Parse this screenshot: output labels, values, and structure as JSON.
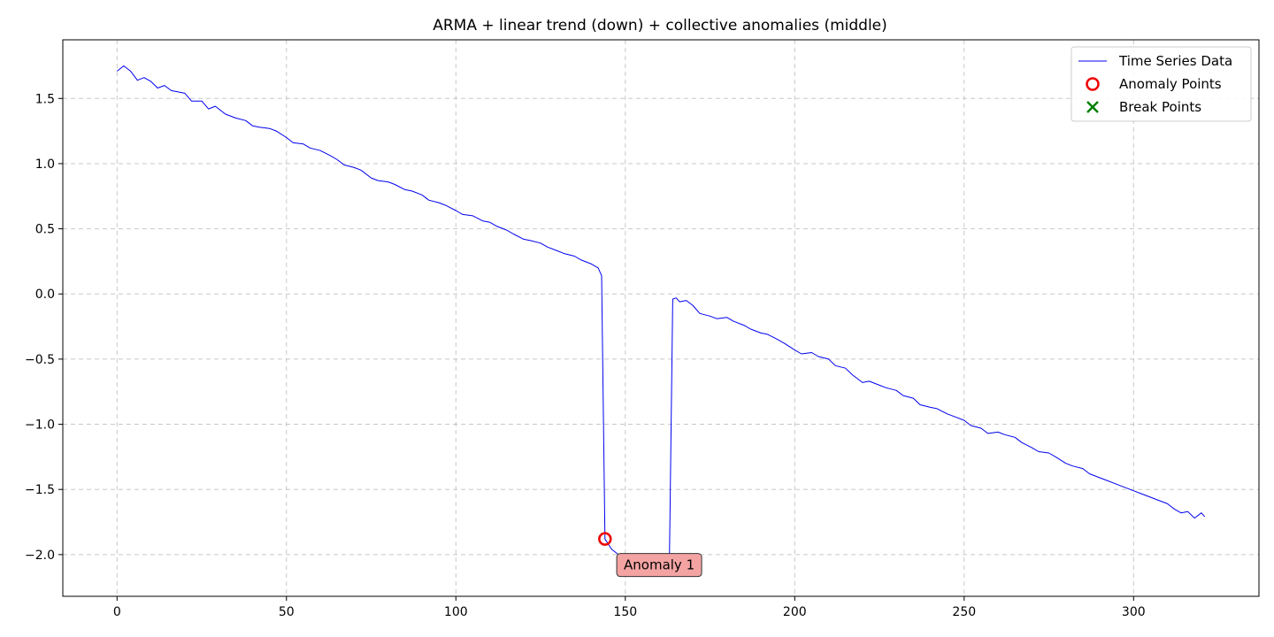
{
  "chart_data": {
    "type": "line",
    "title": "ARMA + linear trend (down) + collective anomalies (middle)",
    "xlabel": "",
    "ylabel": "",
    "xlim": [
      -16,
      337
    ],
    "ylim": [
      -2.32,
      1.95
    ],
    "x_ticks": [
      0,
      50,
      100,
      150,
      200,
      250,
      300
    ],
    "y_ticks": [
      1.5,
      1.0,
      0.5,
      0.0,
      -0.5,
      -1.0,
      -1.5,
      -2.0
    ],
    "x_tick_labels": [
      "0",
      "50",
      "100",
      "150",
      "200",
      "250",
      "300"
    ],
    "y_tick_labels": [
      "1.5",
      "1.0",
      "0.5",
      "0.0",
      "−0.5",
      "−1.0",
      "−1.5",
      "−2.0"
    ],
    "grid": true,
    "legend_position": "top-right",
    "series": [
      {
        "name": "Time Series Data",
        "color": "#0000ee",
        "points": [
          [
            0,
            1.71
          ],
          [
            2,
            1.75
          ],
          [
            4,
            1.71
          ],
          [
            6,
            1.64
          ],
          [
            8,
            1.66
          ],
          [
            10,
            1.63
          ],
          [
            12,
            1.58
          ],
          [
            14,
            1.6
          ],
          [
            16,
            1.56
          ],
          [
            18,
            1.55
          ],
          [
            20,
            1.54
          ],
          [
            22,
            1.48
          ],
          [
            25,
            1.48
          ],
          [
            27,
            1.42
          ],
          [
            29,
            1.44
          ],
          [
            32,
            1.38
          ],
          [
            35,
            1.35
          ],
          [
            38,
            1.33
          ],
          [
            40,
            1.29
          ],
          [
            42,
            1.28
          ],
          [
            45,
            1.27
          ],
          [
            47,
            1.25
          ],
          [
            50,
            1.2
          ],
          [
            52,
            1.16
          ],
          [
            55,
            1.15
          ],
          [
            57,
            1.12
          ],
          [
            60,
            1.1
          ],
          [
            63,
            1.06
          ],
          [
            65,
            1.03
          ],
          [
            67,
            0.99
          ],
          [
            70,
            0.97
          ],
          [
            72,
            0.95
          ],
          [
            75,
            0.89
          ],
          [
            77,
            0.87
          ],
          [
            80,
            0.86
          ],
          [
            82,
            0.84
          ],
          [
            85,
            0.8
          ],
          [
            87,
            0.79
          ],
          [
            90,
            0.76
          ],
          [
            92,
            0.72
          ],
          [
            95,
            0.7
          ],
          [
            97,
            0.68
          ],
          [
            100,
            0.64
          ],
          [
            102,
            0.61
          ],
          [
            105,
            0.6
          ],
          [
            108,
            0.56
          ],
          [
            110,
            0.55
          ],
          [
            112,
            0.52
          ],
          [
            115,
            0.49
          ],
          [
            117,
            0.46
          ],
          [
            120,
            0.42
          ],
          [
            122,
            0.41
          ],
          [
            125,
            0.39
          ],
          [
            127,
            0.36
          ],
          [
            130,
            0.33
          ],
          [
            132,
            0.31
          ],
          [
            135,
            0.29
          ],
          [
            137,
            0.26
          ],
          [
            140,
            0.23
          ],
          [
            142,
            0.2
          ],
          [
            143,
            0.14
          ],
          [
            144,
            -1.88
          ],
          [
            146,
            -1.96
          ],
          [
            148,
            -2.0
          ],
          [
            150,
            -2.0
          ],
          [
            152,
            -2.03
          ],
          [
            155,
            -2.04
          ],
          [
            158,
            -2.05
          ],
          [
            160,
            -2.05
          ],
          [
            162,
            -2.06
          ],
          [
            163,
            -2.06
          ],
          [
            164,
            -0.04
          ],
          [
            165,
            -0.03
          ],
          [
            166,
            -0.06
          ],
          [
            168,
            -0.05
          ],
          [
            170,
            -0.09
          ],
          [
            172,
            -0.15
          ],
          [
            175,
            -0.17
          ],
          [
            177,
            -0.19
          ],
          [
            180,
            -0.18
          ],
          [
            182,
            -0.21
          ],
          [
            185,
            -0.24
          ],
          [
            187,
            -0.27
          ],
          [
            190,
            -0.3
          ],
          [
            192,
            -0.31
          ],
          [
            195,
            -0.35
          ],
          [
            197,
            -0.38
          ],
          [
            200,
            -0.43
          ],
          [
            202,
            -0.46
          ],
          [
            205,
            -0.45
          ],
          [
            207,
            -0.48
          ],
          [
            210,
            -0.5
          ],
          [
            212,
            -0.55
          ],
          [
            215,
            -0.57
          ],
          [
            217,
            -0.62
          ],
          [
            220,
            -0.68
          ],
          [
            222,
            -0.67
          ],
          [
            225,
            -0.7
          ],
          [
            227,
            -0.72
          ],
          [
            230,
            -0.74
          ],
          [
            232,
            -0.78
          ],
          [
            235,
            -0.8
          ],
          [
            237,
            -0.85
          ],
          [
            240,
            -0.87
          ],
          [
            242,
            -0.88
          ],
          [
            245,
            -0.92
          ],
          [
            247,
            -0.94
          ],
          [
            250,
            -0.97
          ],
          [
            252,
            -1.01
          ],
          [
            255,
            -1.03
          ],
          [
            257,
            -1.07
          ],
          [
            260,
            -1.06
          ],
          [
            262,
            -1.08
          ],
          [
            265,
            -1.1
          ],
          [
            267,
            -1.14
          ],
          [
            270,
            -1.18
          ],
          [
            272,
            -1.21
          ],
          [
            275,
            -1.22
          ],
          [
            277,
            -1.25
          ],
          [
            280,
            -1.3
          ],
          [
            282,
            -1.32
          ],
          [
            285,
            -1.34
          ],
          [
            287,
            -1.38
          ],
          [
            290,
            -1.41
          ],
          [
            292,
            -1.43
          ],
          [
            295,
            -1.46
          ],
          [
            297,
            -1.48
          ],
          [
            300,
            -1.51
          ],
          [
            302,
            -1.53
          ],
          [
            305,
            -1.56
          ],
          [
            307,
            -1.58
          ],
          [
            310,
            -1.61
          ],
          [
            312,
            -1.65
          ],
          [
            314,
            -1.68
          ],
          [
            316,
            -1.67
          ],
          [
            318,
            -1.72
          ],
          [
            320,
            -1.68
          ],
          [
            321,
            -1.71
          ]
        ]
      }
    ],
    "anomaly_points": {
      "name": "Anomaly Points",
      "color": "#ee0000",
      "points": [
        [
          144,
          -1.88
        ]
      ]
    },
    "break_points": {
      "name": "Break Points",
      "color": "#008000",
      "points": []
    },
    "annotations": [
      {
        "text": "Anomaly 1",
        "x": 160,
        "y": -2.08
      }
    ],
    "legend": [
      {
        "label": "Time Series Data",
        "marker": "line",
        "color": "#0000ee"
      },
      {
        "label": "Anomaly Points",
        "marker": "circle",
        "color": "#ee0000"
      },
      {
        "label": "Break Points",
        "marker": "x",
        "color": "#008000"
      }
    ]
  }
}
